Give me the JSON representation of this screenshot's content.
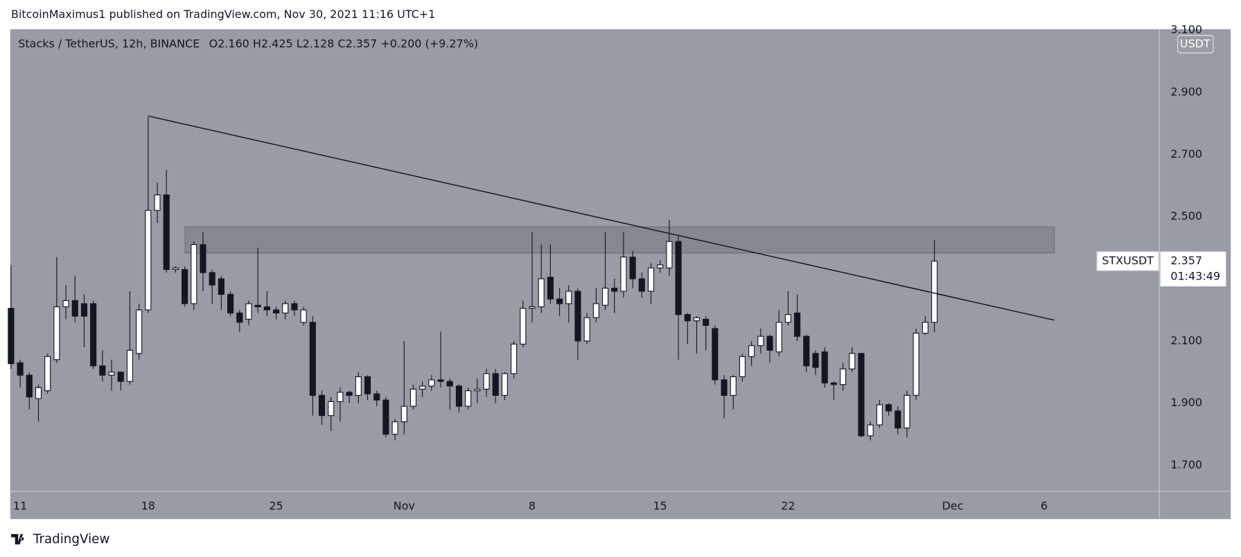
{
  "header": "BitcoinMaximus1 published on TradingView.com, Nov 30, 2021 11:16 UTC+1",
  "footer": "TradingView",
  "chart_data": {
    "type": "candlestick",
    "symbol": "Stacks / TetherUS, 12h, BINANCE",
    "ohlc_legend": "O2.160  H2.425  L2.128  C2.357  +0.200 (+9.27%)",
    "currency": "USDT",
    "price_label": {
      "symbol": "STXUSDT",
      "price": "2.357",
      "countdown": "01:43:49"
    },
    "x": [
      -0.5,
      0,
      0.5,
      1,
      1.5,
      2,
      2.5,
      3,
      3.5,
      4,
      4.5,
      5,
      5.5,
      6,
      6.5,
      7,
      7.5,
      8,
      8.5,
      9,
      9.5,
      10,
      10.5,
      11,
      11.5,
      12,
      12.5,
      13,
      13.5,
      14,
      14.5,
      15,
      15.5,
      16,
      16.5,
      17,
      17.5,
      18,
      18.5,
      19,
      19.5,
      20,
      20.5,
      21,
      21.5,
      22,
      22.5,
      23,
      23.5,
      24,
      24.5,
      25,
      25.5,
      26,
      26.5,
      27,
      27.5,
      28,
      28.5,
      29,
      29.5,
      30,
      30.5,
      31,
      31.5,
      32,
      32.5,
      33,
      33.5,
      34,
      34.5,
      35,
      35.5,
      36,
      36.5,
      37,
      37.5,
      38,
      38.5,
      39,
      39.5,
      40,
      40.5,
      41,
      41.5,
      42,
      42.5,
      43,
      43.5,
      44,
      44.5,
      45,
      45.5,
      46,
      46.5,
      47,
      47.5,
      48,
      48.5,
      49,
      49.5,
      50
    ],
    "open": [
      2.205,
      2.03,
      1.99,
      1.915,
      1.94,
      2.04,
      2.21,
      2.23,
      2.22,
      2.22,
      2.02,
      1.99,
      2.0,
      1.97,
      2.06,
      2.2,
      2.52,
      2.57,
      2.33,
      2.33,
      2.22,
      2.41,
      2.32,
      2.3,
      2.25,
      2.19,
      2.17,
      2.215,
      2.21,
      2.2,
      2.19,
      2.22,
      2.16,
      2.16,
      1.925,
      1.86,
      1.905,
      1.935,
      1.925,
      1.985,
      1.93,
      1.91,
      1.8,
      1.84,
      1.89,
      1.945,
      1.955,
      1.975,
      1.97,
      1.955,
      1.89,
      1.94,
      1.945,
      1.995,
      1.925,
      1.995,
      2.09,
      2.205,
      2.21,
      2.305,
      2.235,
      2.22,
      2.26,
      2.1,
      2.175,
      2.215,
      2.27,
      2.26,
      2.37,
      2.3,
      2.26,
      2.335,
      2.335,
      2.42,
      2.185,
      2.165,
      2.17,
      2.14,
      1.975,
      1.925,
      1.985,
      2.05,
      2.085,
      2.115,
      2.065,
      2.16,
      2.19,
      2.115,
      2.06,
      2.065,
      1.965,
      1.96,
      2.01,
      2.06,
      1.795,
      1.83,
      1.895,
      1.875,
      1.82,
      1.925,
      2.125,
      2.16
    ],
    "high": [
      2.345,
      2.04,
      2.0,
      1.96,
      2.06,
      2.37,
      2.28,
      2.31,
      2.25,
      2.23,
      2.07,
      2.04,
      2.0,
      2.26,
      2.22,
      2.82,
      2.61,
      2.65,
      2.34,
      2.34,
      2.42,
      2.45,
      2.33,
      2.31,
      2.26,
      2.2,
      2.23,
      2.4,
      2.26,
      2.21,
      2.23,
      2.23,
      2.21,
      2.18,
      1.94,
      1.92,
      1.95,
      1.94,
      2.0,
      1.99,
      1.94,
      1.92,
      1.85,
      2.1,
      1.96,
      1.97,
      1.99,
      2.13,
      1.98,
      1.96,
      1.95,
      1.98,
      2.01,
      2.01,
      2.0,
      2.1,
      2.23,
      2.45,
      2.41,
      2.41,
      2.27,
      2.28,
      2.27,
      2.19,
      2.27,
      2.45,
      2.3,
      2.45,
      2.39,
      2.32,
      2.35,
      2.36,
      2.49,
      2.44,
      2.19,
      2.18,
      2.18,
      2.15,
      1.99,
      1.99,
      2.06,
      2.1,
      2.14,
      2.12,
      2.2,
      2.26,
      2.25,
      2.12,
      2.07,
      2.08,
      1.97,
      2.03,
      2.08,
      2.06,
      1.84,
      1.91,
      1.9,
      1.89,
      1.94,
      2.14,
      2.18,
      2.425
    ],
    "low": [
      2.01,
      1.95,
      1.88,
      1.84,
      1.93,
      2.03,
      2.17,
      2.16,
      2.08,
      2.01,
      1.97,
      1.94,
      1.94,
      1.96,
      2.04,
      2.19,
      2.48,
      2.32,
      2.32,
      2.21,
      2.2,
      2.26,
      2.22,
      2.2,
      2.18,
      2.13,
      2.15,
      2.19,
      2.18,
      2.17,
      2.17,
      2.18,
      2.15,
      1.86,
      1.83,
      1.81,
      1.84,
      1.9,
      1.9,
      1.91,
      1.89,
      1.79,
      1.78,
      1.8,
      1.88,
      1.92,
      1.94,
      1.95,
      1.88,
      1.87,
      1.88,
      1.9,
      1.92,
      1.9,
      1.91,
      1.98,
      2.08,
      2.16,
      2.19,
      2.22,
      2.18,
      2.16,
      2.04,
      2.09,
      2.16,
      2.2,
      2.19,
      2.24,
      2.27,
      2.24,
      2.22,
      2.32,
      2.31,
      2.04,
      2.09,
      2.06,
      2.07,
      1.96,
      1.85,
      1.88,
      1.97,
      2.02,
      2.06,
      2.03,
      2.05,
      2.15,
      2.1,
      2.0,
      1.99,
      1.95,
      1.91,
      1.94,
      2.0,
      1.79,
      1.78,
      1.82,
      1.86,
      1.8,
      1.79,
      1.91,
      2.12,
      2.128
    ],
    "close": [
      2.027,
      1.99,
      1.92,
      1.95,
      2.05,
      2.21,
      2.23,
      2.18,
      2.18,
      2.02,
      1.99,
      2.0,
      1.97,
      2.07,
      2.2,
      2.52,
      2.57,
      2.33,
      2.335,
      2.22,
      2.41,
      2.32,
      2.28,
      2.25,
      2.19,
      2.16,
      2.22,
      2.21,
      2.2,
      2.19,
      2.22,
      2.2,
      2.2,
      1.925,
      1.86,
      1.905,
      1.935,
      1.925,
      1.985,
      1.93,
      1.91,
      1.8,
      1.84,
      1.89,
      1.945,
      1.955,
      1.975,
      1.97,
      1.955,
      1.89,
      1.94,
      1.945,
      1.995,
      1.925,
      1.995,
      2.09,
      2.205,
      2.21,
      2.3,
      2.235,
      2.22,
      2.26,
      2.1,
      2.175,
      2.22,
      2.27,
      2.26,
      2.37,
      2.3,
      2.26,
      2.335,
      2.345,
      2.42,
      2.185,
      2.165,
      2.175,
      2.15,
      1.975,
      1.925,
      1.985,
      2.05,
      2.085,
      2.115,
      2.07,
      2.16,
      2.185,
      2.115,
      2.02,
      2.015,
      1.965,
      1.96,
      2.01,
      2.06,
      1.795,
      1.83,
      1.895,
      1.875,
      1.82,
      1.925,
      2.125,
      2.16,
      2.357
    ],
    "up_color": "#ffffff",
    "down_color": "#131722",
    "xlim": [
      -0.54,
      62.31
    ],
    "xticks": [
      {
        "value": 0,
        "label": "11"
      },
      {
        "value": 7,
        "label": "18"
      },
      {
        "value": 14,
        "label": "25"
      },
      {
        "value": 21,
        "label": "Nov"
      },
      {
        "value": 28,
        "label": "8"
      },
      {
        "value": 35,
        "label": "15"
      },
      {
        "value": 42,
        "label": "22"
      },
      {
        "value": 51,
        "label": "Dec"
      },
      {
        "value": 56,
        "label": "6"
      }
    ],
    "ylim": [
      1.616,
      3.103
    ],
    "yticks": [
      {
        "value": 1.7,
        "label": "1.700"
      },
      {
        "value": 1.9,
        "label": "1.900"
      },
      {
        "value": 2.1,
        "label": "2.100"
      },
      {
        "value": 2.5,
        "label": "2.500"
      },
      {
        "value": 2.7,
        "label": "2.700"
      },
      {
        "value": 2.9,
        "label": "2.900"
      },
      {
        "value": 3.1,
        "label": "3.100"
      }
    ],
    "grid": false,
    "zone": {
      "x": [
        9.02,
        56.56
      ],
      "y": [
        2.383,
        2.467
      ]
    },
    "trendline": {
      "x": [
        6.99,
        56.56
      ],
      "y": [
        2.824,
        2.167
      ]
    }
  }
}
